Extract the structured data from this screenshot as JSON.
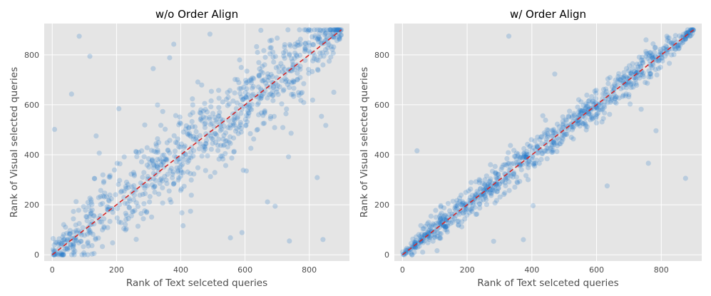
{
  "chart_data": [
    {
      "type": "scatter",
      "title": "w/o Order Align",
      "xlabel": "Rank of Text selceted queries",
      "ylabel": "Rank of Visual selected queries",
      "xlim": [
        -25,
        925
      ],
      "ylim": [
        -25,
        925
      ],
      "xticks": [
        0,
        200,
        400,
        600,
        800
      ],
      "yticks": [
        0,
        200,
        400,
        600,
        800
      ],
      "grid": true,
      "point_color": "#1f77c8",
      "point_alpha": 0.22,
      "n_points": 900,
      "spread_std": 80,
      "outlier_fraction": 0.09,
      "reference_line": {
        "from": [
          0,
          0
        ],
        "to": [
          900,
          900
        ],
        "color": "#d62728",
        "style": "dashed"
      }
    },
    {
      "type": "scatter",
      "title": "w/ Order Align",
      "xlabel": "Rank of Text selceted queries",
      "ylabel": "Rank of Visual selected queries",
      "xlim": [
        -25,
        925
      ],
      "ylim": [
        -25,
        925
      ],
      "xticks": [
        0,
        200,
        400,
        600,
        800
      ],
      "yticks": [
        0,
        200,
        400,
        600,
        800
      ],
      "grid": true,
      "point_color": "#1f77c8",
      "point_alpha": 0.22,
      "n_points": 900,
      "spread_std": 32,
      "outlier_fraction": 0.02,
      "reference_line": {
        "from": [
          0,
          0
        ],
        "to": [
          900,
          900
        ],
        "color": "#d62728",
        "style": "dashed"
      }
    }
  ],
  "colors": {
    "plot_background": "#e5e5e5",
    "grid": "#ffffff",
    "text": "#4d4d4d"
  }
}
